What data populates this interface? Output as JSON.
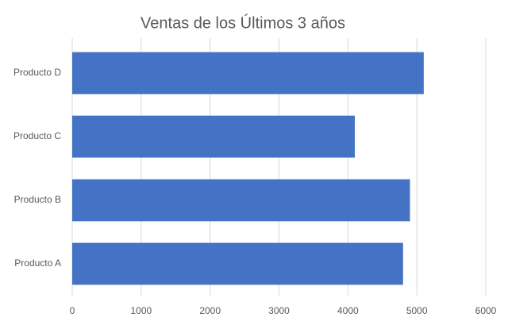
{
  "chart_data": {
    "type": "bar",
    "orientation": "horizontal",
    "title": "Ventas de los Últimos 3 años",
    "categories": [
      "Producto A",
      "Producto B",
      "Producto C",
      "Producto D"
    ],
    "values": [
      4800,
      4900,
      4100,
      5100
    ],
    "color": "#4472c4",
    "xlim": [
      0,
      6000
    ],
    "xticks": [
      0,
      1000,
      2000,
      3000,
      4000,
      5000,
      6000
    ],
    "grid": true
  }
}
